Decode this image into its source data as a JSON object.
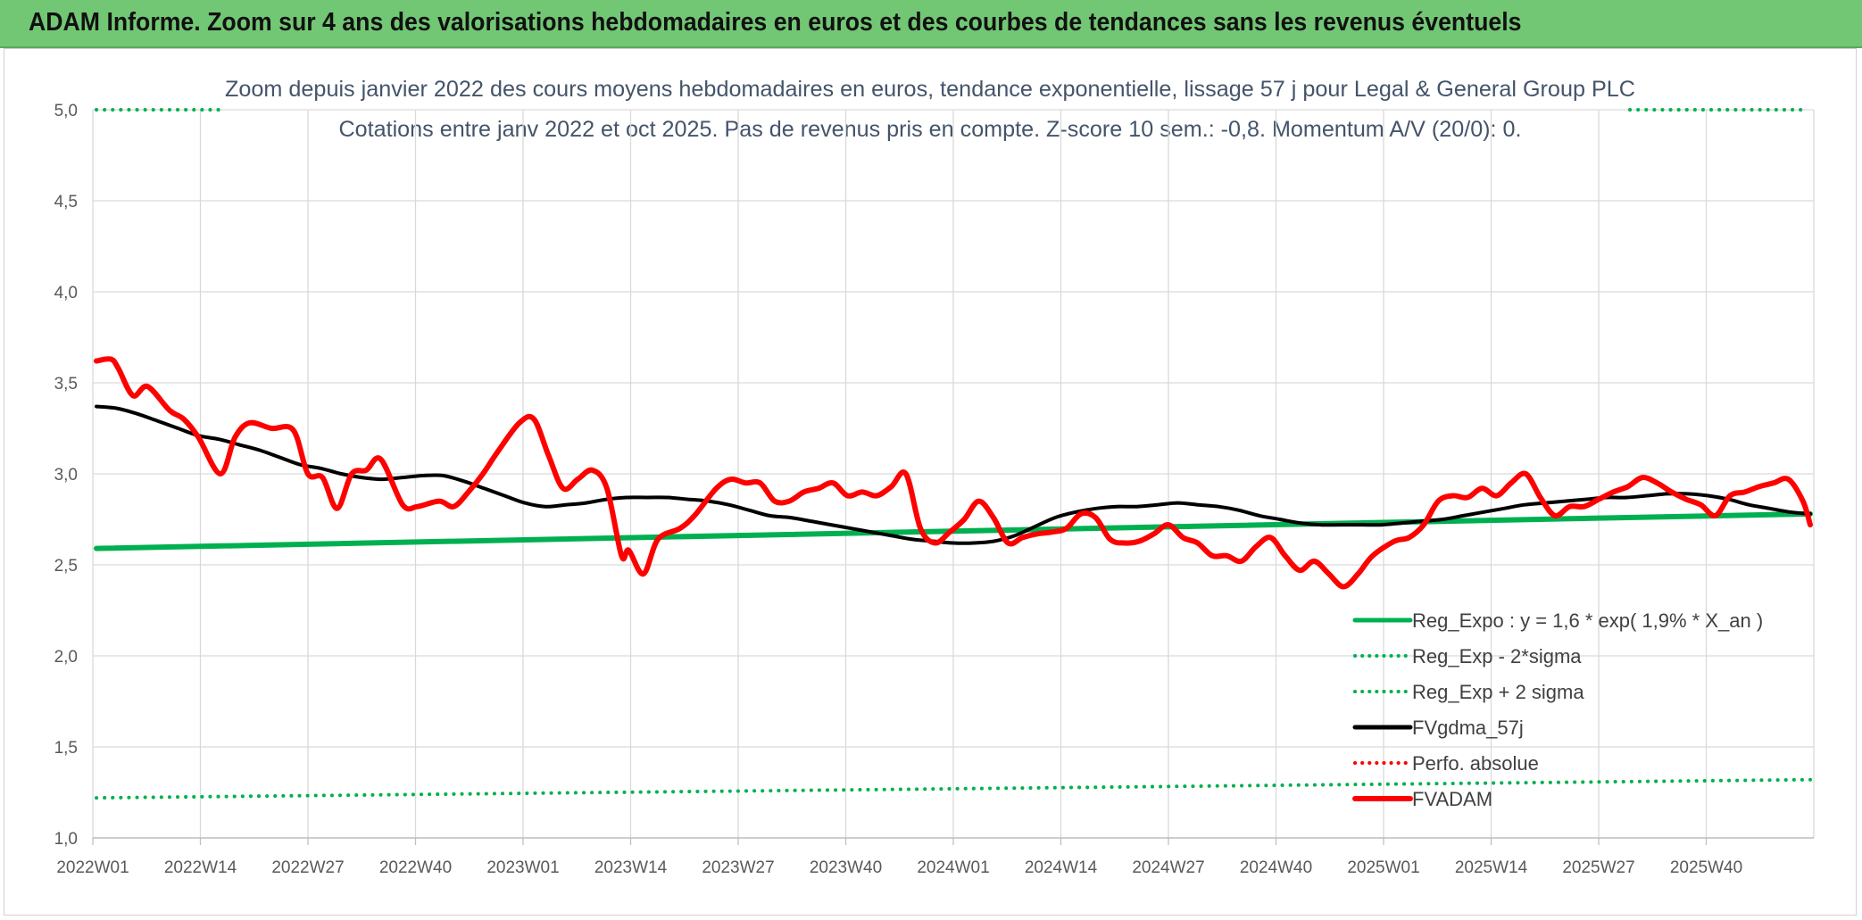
{
  "header": {
    "title": "ADAM Informe. Zoom sur 4 ans des valorisations hebdomadaires en euros et des courbes de tendances sans les revenus éventuels"
  },
  "chart_data": {
    "type": "line",
    "title": "Zoom depuis janvier 2022 des cours moyens hebdomadaires en euros, tendance exponentielle, lissage 57 j pour Legal & General Group PLC",
    "subtitle": "Cotations entre janv 2022 et oct 2025. Pas de revenus pris en compte. Z-score 10 sem.: -0,8. Momentum A/V (20/0): 0.",
    "ylim": [
      1.0,
      5.0
    ],
    "yticks": [
      "1,0",
      "1,5",
      "2,0",
      "2,5",
      "3,0",
      "3,5",
      "4,0",
      "4,5",
      "5,0"
    ],
    "xticks": [
      "2022W01",
      "2022W14",
      "2022W27",
      "2022W40",
      "2023W01",
      "2023W14",
      "2023W27",
      "2023W40",
      "2024W01",
      "2024W14",
      "2024W27",
      "2024W40",
      "2025W01",
      "2025W14",
      "2025W27",
      "2025W40"
    ],
    "x_count": 202,
    "legend_position": "bottom-right",
    "series": [
      {
        "name": "Reg_Expo : y = 1,6 * exp( 1,9% *  X_an )",
        "color": "#00b050",
        "style": "solid",
        "width": 6,
        "anchors": [
          [
            0,
            2.59
          ],
          [
            201,
            2.78
          ]
        ]
      },
      {
        "name": "Reg_Exp - 2*sigma",
        "color": "#00b050",
        "style": "dotted",
        "width": 4,
        "anchors": [
          [
            0,
            1.22
          ],
          [
            201,
            1.32
          ]
        ]
      },
      {
        "name": "Reg_Exp + 2 sigma",
        "color": "#00b050",
        "style": "dotted",
        "width": 4,
        "anchors": [
          [
            0,
            5.0
          ],
          [
            201,
            5.0
          ]
        ]
      },
      {
        "name": "FVgdma_57j",
        "color": "#000000",
        "style": "solid",
        "width": 4,
        "anchors": [
          [
            0,
            3.37
          ],
          [
            3,
            3.36
          ],
          [
            6,
            3.33
          ],
          [
            9,
            3.29
          ],
          [
            12,
            3.25
          ],
          [
            15,
            3.21
          ],
          [
            18,
            3.19
          ],
          [
            21,
            3.16
          ],
          [
            24,
            3.13
          ],
          [
            27,
            3.09
          ],
          [
            30,
            3.05
          ],
          [
            33,
            3.03
          ],
          [
            36,
            3.0
          ],
          [
            39,
            2.98
          ],
          [
            42,
            2.97
          ],
          [
            45,
            2.98
          ],
          [
            48,
            2.99
          ],
          [
            51,
            2.99
          ],
          [
            54,
            2.96
          ],
          [
            57,
            2.92
          ],
          [
            60,
            2.88
          ],
          [
            63,
            2.84
          ],
          [
            66,
            2.82
          ],
          [
            69,
            2.83
          ],
          [
            72,
            2.84
          ],
          [
            75,
            2.86
          ],
          [
            78,
            2.87
          ],
          [
            81,
            2.87
          ],
          [
            84,
            2.87
          ],
          [
            87,
            2.86
          ],
          [
            90,
            2.85
          ],
          [
            93,
            2.83
          ],
          [
            96,
            2.8
          ],
          [
            99,
            2.77
          ],
          [
            102,
            2.76
          ],
          [
            105,
            2.74
          ],
          [
            108,
            2.72
          ],
          [
            111,
            2.7
          ],
          [
            114,
            2.68
          ],
          [
            117,
            2.66
          ],
          [
            120,
            2.64
          ],
          [
            123,
            2.63
          ],
          [
            126,
            2.62
          ],
          [
            129,
            2.62
          ],
          [
            132,
            2.63
          ],
          [
            135,
            2.66
          ],
          [
            138,
            2.71
          ],
          [
            141,
            2.76
          ],
          [
            144,
            2.79
          ],
          [
            147,
            2.81
          ],
          [
            150,
            2.82
          ],
          [
            153,
            2.82
          ],
          [
            156,
            2.83
          ],
          [
            159,
            2.84
          ],
          [
            162,
            2.83
          ],
          [
            165,
            2.82
          ],
          [
            168,
            2.8
          ],
          [
            171,
            2.77
          ],
          [
            174,
            2.75
          ],
          [
            177,
            2.73
          ],
          [
            180,
            2.72
          ],
          [
            183,
            2.72
          ],
          [
            186,
            2.72
          ],
          [
            189,
            2.72
          ],
          [
            192,
            2.73
          ],
          [
            195,
            2.74
          ],
          [
            198,
            2.75
          ],
          [
            201,
            2.77
          ],
          [
            204,
            2.79
          ],
          [
            207,
            2.81
          ],
          [
            210,
            2.83
          ],
          [
            213,
            2.84
          ],
          [
            216,
            2.85
          ],
          [
            219,
            2.86
          ],
          [
            222,
            2.87
          ],
          [
            225,
            2.87
          ],
          [
            228,
            2.88
          ],
          [
            231,
            2.89
          ],
          [
            234,
            2.89
          ],
          [
            237,
            2.88
          ],
          [
            240,
            2.86
          ],
          [
            243,
            2.83
          ],
          [
            246,
            2.81
          ],
          [
            249,
            2.79
          ],
          [
            252,
            2.78
          ]
        ]
      },
      {
        "name": "Perfo. absolue",
        "color": "#ff0000",
        "style": "dotted",
        "width": 4,
        "anchors": []
      },
      {
        "name": "FVADAM",
        "color": "#ff0000",
        "style": "solid",
        "width": 6,
        "anchors": [
          [
            0,
            3.62
          ],
          [
            2,
            3.63
          ],
          [
            3,
            3.58
          ],
          [
            5,
            3.43
          ],
          [
            7,
            3.48
          ],
          [
            10,
            3.35
          ],
          [
            12,
            3.3
          ],
          [
            14,
            3.2
          ],
          [
            17,
            3.0
          ],
          [
            19,
            3.2
          ],
          [
            21,
            3.28
          ],
          [
            24,
            3.25
          ],
          [
            27,
            3.24
          ],
          [
            29,
            3.0
          ],
          [
            31,
            2.98
          ],
          [
            33,
            2.81
          ],
          [
            35,
            3.0
          ],
          [
            37,
            3.02
          ],
          [
            39,
            3.08
          ],
          [
            42,
            2.83
          ],
          [
            44,
            2.82
          ],
          [
            47,
            2.85
          ],
          [
            49,
            2.82
          ],
          [
            51,
            2.9
          ],
          [
            53,
            3.0
          ],
          [
            55,
            3.12
          ],
          [
            58,
            3.28
          ],
          [
            60,
            3.3
          ],
          [
            62,
            3.1
          ],
          [
            64,
            2.92
          ],
          [
            66,
            2.97
          ],
          [
            68,
            3.02
          ],
          [
            70,
            2.92
          ],
          [
            72,
            2.55
          ],
          [
            73,
            2.58
          ],
          [
            75,
            2.45
          ],
          [
            77,
            2.64
          ],
          [
            80,
            2.7
          ],
          [
            82,
            2.77
          ],
          [
            85,
            2.92
          ],
          [
            87,
            2.97
          ],
          [
            89,
            2.95
          ],
          [
            91,
            2.95
          ],
          [
            93,
            2.85
          ],
          [
            95,
            2.85
          ],
          [
            97,
            2.9
          ],
          [
            99,
            2.92
          ],
          [
            101,
            2.95
          ],
          [
            103,
            2.88
          ],
          [
            105,
            2.9
          ],
          [
            107,
            2.88
          ],
          [
            109,
            2.93
          ],
          [
            111,
            3.0
          ],
          [
            113,
            2.7
          ],
          [
            115,
            2.62
          ],
          [
            117,
            2.68
          ],
          [
            119,
            2.75
          ],
          [
            121,
            2.85
          ],
          [
            123,
            2.76
          ],
          [
            125,
            2.62
          ],
          [
            127,
            2.65
          ],
          [
            129,
            2.67
          ],
          [
            131,
            2.68
          ],
          [
            133,
            2.7
          ],
          [
            135,
            2.78
          ],
          [
            137,
            2.76
          ],
          [
            139,
            2.64
          ],
          [
            141,
            2.62
          ],
          [
            143,
            2.63
          ],
          [
            145,
            2.67
          ],
          [
            147,
            2.72
          ],
          [
            149,
            2.65
          ],
          [
            151,
            2.62
          ],
          [
            153,
            2.55
          ],
          [
            155,
            2.55
          ],
          [
            157,
            2.52
          ],
          [
            159,
            2.6
          ],
          [
            161,
            2.65
          ],
          [
            163,
            2.55
          ],
          [
            165,
            2.47
          ],
          [
            167,
            2.52
          ],
          [
            169,
            2.45
          ],
          [
            171,
            2.38
          ],
          [
            173,
            2.45
          ],
          [
            175,
            2.55
          ],
          [
            178,
            2.63
          ],
          [
            180,
            2.65
          ],
          [
            182,
            2.72
          ],
          [
            184,
            2.85
          ],
          [
            186,
            2.88
          ],
          [
            188,
            2.87
          ],
          [
            190,
            2.92
          ],
          [
            192,
            2.88
          ],
          [
            194,
            2.95
          ],
          [
            196,
            3.0
          ],
          [
            198,
            2.87
          ],
          [
            200,
            2.77
          ],
          [
            202,
            2.82
          ],
          [
            204,
            2.82
          ],
          [
            206,
            2.86
          ],
          [
            208,
            2.9
          ],
          [
            210,
            2.93
          ],
          [
            212,
            2.98
          ],
          [
            214,
            2.95
          ],
          [
            216,
            2.9
          ],
          [
            218,
            2.86
          ],
          [
            220,
            2.83
          ],
          [
            222,
            2.77
          ],
          [
            224,
            2.88
          ],
          [
            226,
            2.9
          ],
          [
            228,
            2.93
          ],
          [
            230,
            2.95
          ],
          [
            232,
            2.97
          ],
          [
            234,
            2.85
          ],
          [
            235,
            2.72
          ]
        ]
      }
    ]
  },
  "legend": {
    "items": [
      {
        "label": "Reg_Expo : y = 1,6 * exp( 1,9% *  X_an )",
        "color": "#00b050",
        "style": "solid"
      },
      {
        "label": "Reg_Exp - 2*sigma",
        "color": "#00b050",
        "style": "dotted"
      },
      {
        "label": "Reg_Exp + 2 sigma",
        "color": "#00b050",
        "style": "dotted"
      },
      {
        "label": "FVgdma_57j",
        "color": "#000000",
        "style": "solid"
      },
      {
        "label": "Perfo. absolue",
        "color": "#ff0000",
        "style": "dotted"
      },
      {
        "label": "FVADAM",
        "color": "#ff0000",
        "style": "solid"
      }
    ]
  }
}
